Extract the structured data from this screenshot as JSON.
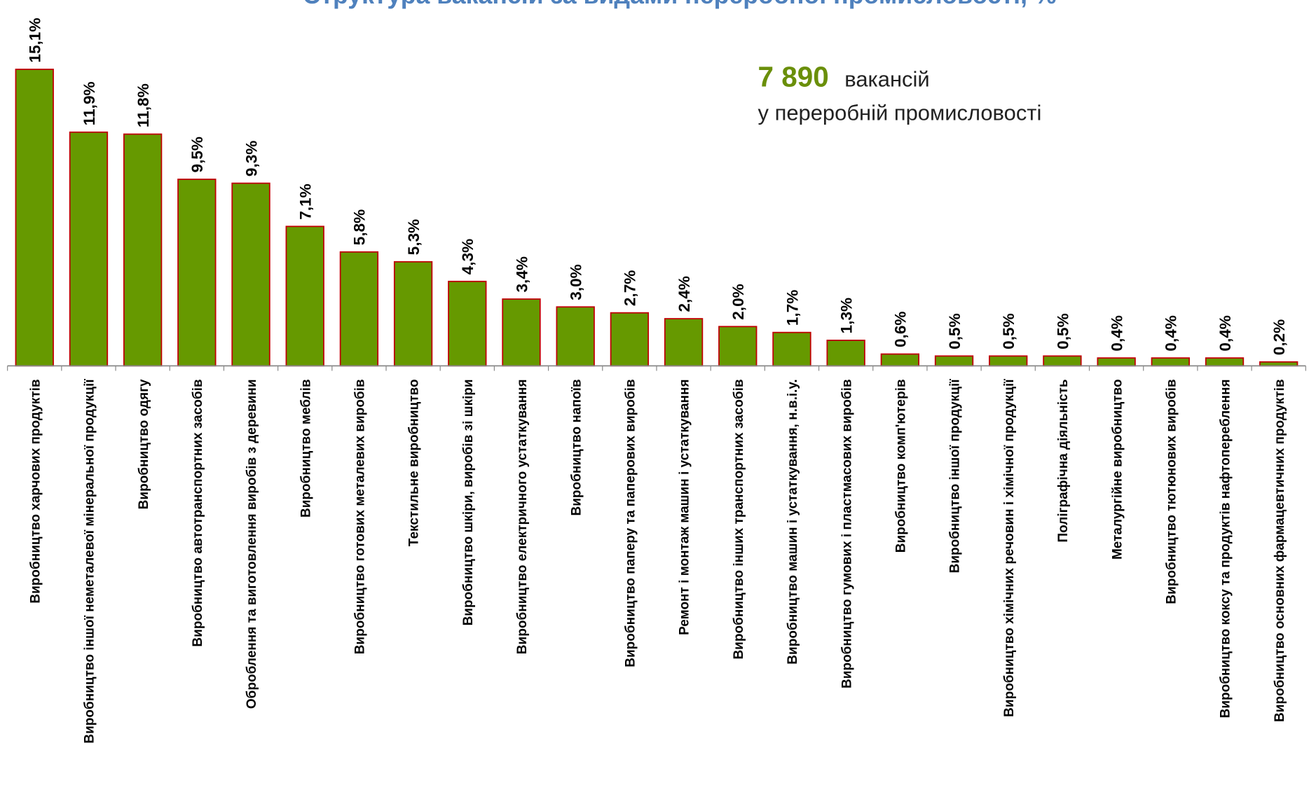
{
  "chart_data": {
    "type": "bar",
    "title": "Структура вакансій за видами переробної промисловості, %",
    "annotation": {
      "number": "7 890",
      "text": "вакансій",
      "subtext": "у переробній промисловості"
    },
    "categories": [
      "Виробництво харчових продуктів",
      "Виробництво іншої неметалевої мінеральної продукції",
      "Виробництво одягу",
      "Виробництво автотранспортних засобів",
      "Оброблення та виготовлення виробів з деревини",
      "Виробництво меблів",
      "Виробництво готових металевих виробів",
      "Текстильне виробництво",
      "Виробництво шкіри, виробів зі шкіри",
      "Виробництво електричного устаткування",
      "Виробництво напоїв",
      "Виробництво паперу та паперових виробів",
      "Ремонт і монтаж машин і устаткування",
      "Виробництво інших транспортних засобів",
      "Виробництво машин і устаткування, н.в.і.у.",
      "Виробництво гумових і пластмасових виробів",
      "Виробництво комп'ютерів",
      "Виробництво іншої продукції",
      "Виробництво хімічних речовин і хімічної продукції",
      "Поліграфічна діяльність",
      "Металургійне виробництво",
      "Виробництво тютюнових виробів",
      "Виробництво коксу та продуктів нафтопереблення",
      "Виробництво основних фармацевтичних продуктів"
    ],
    "values": [
      15.1,
      11.9,
      11.8,
      9.5,
      9.3,
      7.1,
      5.8,
      5.3,
      4.3,
      3.4,
      3.0,
      2.7,
      2.4,
      2.0,
      1.7,
      1.3,
      0.6,
      0.5,
      0.5,
      0.5,
      0.4,
      0.4,
      0.4,
      0.2
    ],
    "value_labels": [
      "15,1%",
      "11,9%",
      "11,8%",
      "9,5%",
      "9,3%",
      "7,1%",
      "5,8%",
      "5,3%",
      "4,3%",
      "3,4%",
      "3,0%",
      "2,7%",
      "2,4%",
      "2,0%",
      "1,7%",
      "1,3%",
      "0,6%",
      "0,5%",
      "0,5%",
      "0,5%",
      "0,4%",
      "0,4%",
      "0,4%",
      "0,2%"
    ],
    "color": "#669900",
    "edge_color": "#c00000",
    "ylim": [
      0,
      16
    ]
  }
}
